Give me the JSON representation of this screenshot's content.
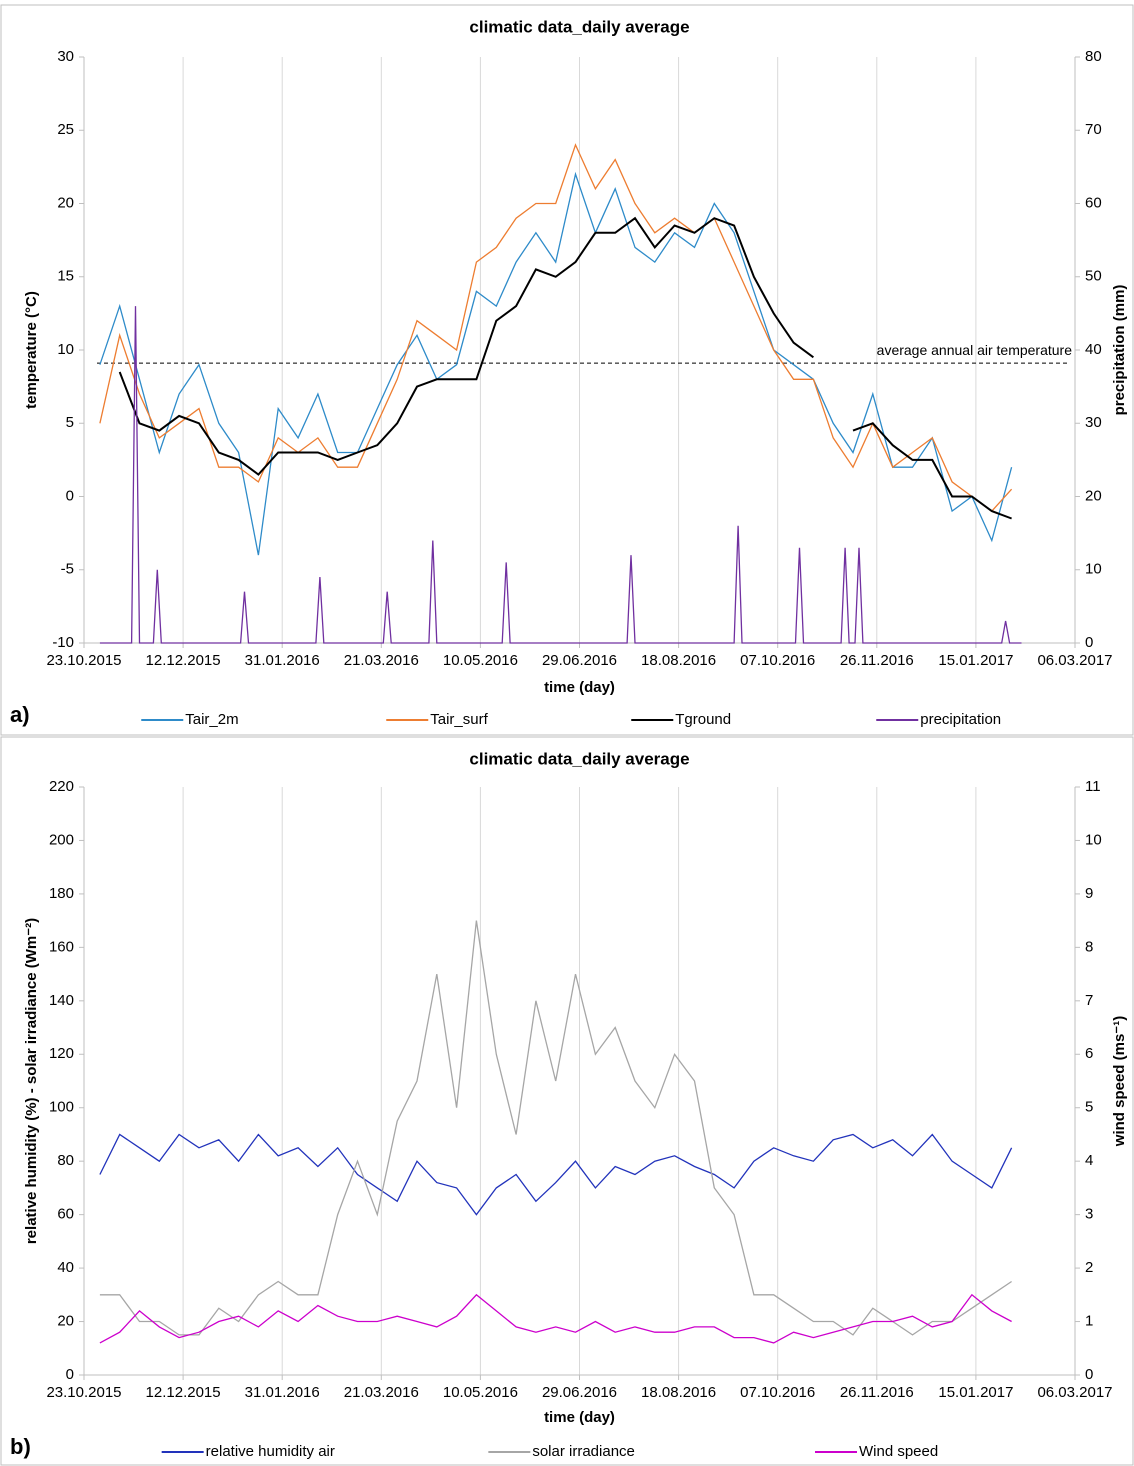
{
  "chart_data": [
    {
      "type": "line",
      "panel": "a)",
      "title": "climatic data_daily average",
      "xlabel": "time (day)",
      "ylabel": "temperature (°C)",
      "y2label": "precipitation (mm)",
      "xlim": [
        "23.10.2015",
        "06.03.2017"
      ],
      "xticks": [
        "23.10.2015",
        "12.12.2015",
        "31.01.2016",
        "21.03.2016",
        "10.05.2016",
        "29.06.2016",
        "18.08.2016",
        "07.10.2016",
        "26.11.2016",
        "15.01.2017",
        "06.03.2017"
      ],
      "ylim": [
        -10,
        30
      ],
      "yticks": [
        -10,
        -5,
        0,
        5,
        10,
        15,
        20,
        25,
        30
      ],
      "y2lim": [
        0,
        80
      ],
      "y2ticks": [
        0,
        10,
        20,
        30,
        40,
        50,
        60,
        70,
        80
      ],
      "grid": "x",
      "annotation": {
        "text": "average annual air temperature",
        "value": 9.1
      },
      "x": [
        "31.10.2015",
        "10.11.2015",
        "20.11.2015",
        "30.11.2015",
        "10.12.2015",
        "20.12.2015",
        "30.12.2015",
        "09.01.2016",
        "19.01.2016",
        "29.01.2016",
        "08.02.2016",
        "18.02.2016",
        "28.02.2016",
        "09.03.2016",
        "19.03.2016",
        "29.03.2016",
        "08.04.2016",
        "18.04.2016",
        "28.04.2016",
        "08.05.2016",
        "18.05.2016",
        "28.05.2016",
        "07.06.2016",
        "17.06.2016",
        "27.06.2016",
        "07.07.2016",
        "17.07.2016",
        "27.07.2016",
        "06.08.2016",
        "16.08.2016",
        "26.08.2016",
        "05.09.2016",
        "15.09.2016",
        "25.09.2016",
        "05.10.2016",
        "15.10.2016",
        "25.10.2016",
        "04.11.2016",
        "14.11.2016",
        "24.11.2016",
        "04.12.2016",
        "14.12.2016",
        "24.12.2016",
        "03.01.2017",
        "13.01.2017",
        "23.01.2017",
        "02.02.2017"
      ],
      "series": [
        {
          "name": "Tair_2m",
          "color": "#2e8bc9",
          "values": [
            9,
            13,
            8,
            3,
            7,
            9,
            5,
            3,
            -4,
            6,
            4,
            7,
            3,
            3,
            6,
            9,
            11,
            8,
            9,
            14,
            13,
            16,
            18,
            16,
            22,
            18,
            21,
            17,
            16,
            18,
            17,
            20,
            18,
            14,
            10,
            9,
            8,
            5,
            3,
            7,
            2,
            2,
            4,
            -1,
            0,
            -3,
            2
          ]
        },
        {
          "name": "Tair_surf",
          "color": "#ed7d31",
          "values": [
            5,
            11,
            7,
            4,
            5,
            6,
            2,
            2,
            1,
            4,
            3,
            4,
            2,
            2,
            5,
            8,
            12,
            11,
            10,
            16,
            17,
            19,
            20,
            20,
            24,
            21,
            23,
            20,
            18,
            19,
            18,
            19,
            16,
            13,
            10,
            8,
            8,
            4,
            2,
            5,
            2,
            3,
            4,
            1,
            0,
            -1,
            0.5
          ]
        },
        {
          "name": "Tground",
          "color": "#000000",
          "values": [
            null,
            8.5,
            5,
            4.5,
            5.5,
            5,
            3,
            2.5,
            1.5,
            3,
            3,
            3,
            2.5,
            3,
            3.5,
            5,
            7.5,
            8,
            8,
            8,
            12,
            13,
            15.5,
            15,
            16,
            18,
            18,
            19,
            17,
            18.5,
            18,
            19,
            18.5,
            15,
            12.5,
            10.5,
            9.5,
            null,
            4.5,
            5,
            3.5,
            2.5,
            2.5,
            0,
            0,
            -1,
            -1.5
          ]
        },
        {
          "name": "precipitation",
          "color": "#7030a0",
          "axis": "y2",
          "x": [
            "31.10.2015",
            "16.11.2015",
            "18.11.2015",
            "20.11.2015",
            "27.11.2015",
            "29.11.2015",
            "01.12.2015",
            "10.01.2016",
            "12.01.2016",
            "14.01.2016",
            "17.02.2016",
            "19.02.2016",
            "21.02.2016",
            "22.03.2016",
            "24.03.2016",
            "26.03.2016",
            "14.04.2016",
            "16.04.2016",
            "18.04.2016",
            "21.05.2016",
            "23.05.2016",
            "25.05.2016",
            "23.07.2016",
            "25.07.2016",
            "27.07.2016",
            "15.09.2016",
            "17.09.2016",
            "19.09.2016",
            "16.10.2016",
            "18.10.2016",
            "20.10.2016",
            "08.11.2016",
            "10.11.2016",
            "12.11.2016",
            "15.11.2016",
            "17.11.2016",
            "19.11.2016",
            "28.01.2017",
            "30.01.2017",
            "01.02.2017",
            "07.02.2017"
          ],
          "values": [
            0,
            0,
            46,
            0,
            0,
            10,
            0,
            0,
            7,
            0,
            0,
            9,
            0,
            0,
            7,
            0,
            0,
            14,
            0,
            0,
            11,
            0,
            0,
            12,
            0,
            0,
            16,
            0,
            0,
            13,
            0,
            0,
            13,
            0,
            0,
            13,
            0,
            0,
            3,
            0,
            0
          ]
        }
      ]
    },
    {
      "type": "line",
      "panel": "b)",
      "title": "climatic data_daily average",
      "xlabel": "time (day)",
      "ylabel": "relative humidity (%) - solar irradiance (Wm⁻²)",
      "y2label": "wind speed (ms⁻¹)",
      "xlim": [
        "23.10.2015",
        "06.03.2017"
      ],
      "xticks": [
        "23.10.2015",
        "12.12.2015",
        "31.01.2016",
        "21.03.2016",
        "10.05.2016",
        "29.06.2016",
        "18.08.2016",
        "07.10.2016",
        "26.11.2016",
        "15.01.2017",
        "06.03.2017"
      ],
      "ylim": [
        0,
        220
      ],
      "yticks": [
        0,
        20,
        40,
        60,
        80,
        100,
        120,
        140,
        160,
        180,
        200,
        220
      ],
      "y2lim": [
        0,
        11
      ],
      "y2ticks": [
        0,
        1,
        2,
        3,
        4,
        5,
        6,
        7,
        8,
        9,
        10,
        11
      ],
      "grid": "x",
      "x": [
        "31.10.2015",
        "10.11.2015",
        "20.11.2015",
        "30.11.2015",
        "10.12.2015",
        "20.12.2015",
        "30.12.2015",
        "09.01.2016",
        "19.01.2016",
        "29.01.2016",
        "08.02.2016",
        "18.02.2016",
        "28.02.2016",
        "09.03.2016",
        "19.03.2016",
        "29.03.2016",
        "08.04.2016",
        "18.04.2016",
        "28.04.2016",
        "08.05.2016",
        "18.05.2016",
        "28.05.2016",
        "07.06.2016",
        "17.06.2016",
        "27.06.2016",
        "07.07.2016",
        "17.07.2016",
        "27.07.2016",
        "06.08.2016",
        "16.08.2016",
        "26.08.2016",
        "05.09.2016",
        "15.09.2016",
        "25.09.2016",
        "05.10.2016",
        "15.10.2016",
        "25.10.2016",
        "04.11.2016",
        "14.11.2016",
        "24.11.2016",
        "04.12.2016",
        "14.12.2016",
        "24.12.2016",
        "03.01.2017",
        "13.01.2017",
        "23.01.2017",
        "02.02.2017"
      ],
      "series": [
        {
          "name": "relative humidity air",
          "color": "#2233bb",
          "values": [
            75,
            90,
            85,
            80,
            90,
            85,
            88,
            80,
            90,
            82,
            85,
            78,
            85,
            75,
            70,
            65,
            80,
            72,
            70,
            60,
            70,
            75,
            65,
            72,
            80,
            70,
            78,
            75,
            80,
            82,
            78,
            75,
            70,
            80,
            85,
            82,
            80,
            88,
            90,
            85,
            88,
            82,
            90,
            80,
            75,
            70,
            85
          ]
        },
        {
          "name": "solar irradiance",
          "color": "#a6a6a6",
          "values": [
            30,
            30,
            20,
            20,
            15,
            15,
            25,
            20,
            30,
            35,
            30,
            30,
            60,
            80,
            60,
            95,
            110,
            150,
            100,
            170,
            120,
            90,
            140,
            110,
            150,
            120,
            130,
            110,
            100,
            120,
            110,
            70,
            60,
            30,
            30,
            25,
            20,
            20,
            15,
            25,
            20,
            15,
            20,
            20,
            25,
            30,
            35
          ]
        },
        {
          "name": "Wind speed",
          "color": "#cc00cc",
          "axis": "y2",
          "values": [
            0.6,
            0.8,
            1.2,
            0.9,
            0.7,
            0.8,
            1.0,
            1.1,
            0.9,
            1.2,
            1.0,
            1.3,
            1.1,
            1.0,
            1.0,
            1.1,
            1.0,
            0.9,
            1.1,
            1.5,
            1.2,
            0.9,
            0.8,
            0.9,
            0.8,
            1.0,
            0.8,
            0.9,
            0.8,
            0.8,
            0.9,
            0.9,
            0.7,
            0.7,
            0.6,
            0.8,
            0.7,
            0.8,
            0.9,
            1.0,
            1.0,
            1.1,
            0.9,
            1.0,
            1.5,
            1.2,
            1.0
          ]
        }
      ]
    }
  ]
}
